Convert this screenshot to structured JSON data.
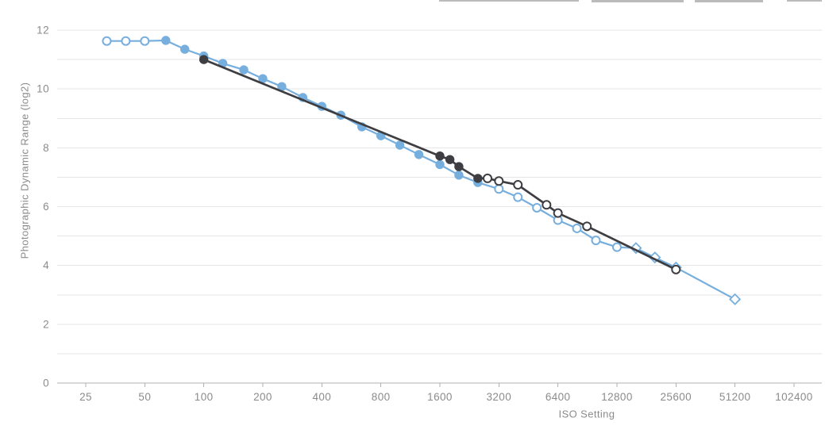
{
  "page": {
    "background": "#ffffff"
  },
  "chart_data": {
    "type": "line",
    "title": "",
    "xlabel": "ISO Setting",
    "ylabel": "Photographic Dynamic Range (log2)",
    "x_scale": "log2",
    "x_ticks": [
      25,
      50,
      100,
      200,
      400,
      800,
      1600,
      3200,
      6400,
      12800,
      25600,
      51200,
      102400
    ],
    "y_ticks_labeled": [
      0,
      2,
      4,
      6,
      8,
      10,
      12
    ],
    "y_gridline_step": 1,
    "ylim": [
      0,
      12
    ],
    "grid": "horizontal-only",
    "legend": "none",
    "colors": {
      "gridline": "#e6e6e6",
      "axis_line": "#b0b0b0",
      "tick_label": "#8b8b8b"
    },
    "series": [
      {
        "name": "blue-camera",
        "color": "#76aede",
        "line_width": 2.2,
        "points": [
          {
            "iso": 32,
            "pdr": 11.63,
            "marker": "open"
          },
          {
            "iso": 40,
            "pdr": 11.63,
            "marker": "open"
          },
          {
            "iso": 50,
            "pdr": 11.63,
            "marker": "open"
          },
          {
            "iso": 64,
            "pdr": 11.65,
            "marker": "filled"
          },
          {
            "iso": 80,
            "pdr": 11.35,
            "marker": "filled"
          },
          {
            "iso": 100,
            "pdr": 11.12,
            "marker": "filled"
          },
          {
            "iso": 125,
            "pdr": 10.87,
            "marker": "filled"
          },
          {
            "iso": 160,
            "pdr": 10.65,
            "marker": "filled"
          },
          {
            "iso": 200,
            "pdr": 10.35,
            "marker": "filled"
          },
          {
            "iso": 250,
            "pdr": 10.08,
            "marker": "filled"
          },
          {
            "iso": 320,
            "pdr": 9.71,
            "marker": "filled"
          },
          {
            "iso": 400,
            "pdr": 9.41,
            "marker": "filled"
          },
          {
            "iso": 500,
            "pdr": 9.11,
            "marker": "filled"
          },
          {
            "iso": 640,
            "pdr": 8.71,
            "marker": "filled"
          },
          {
            "iso": 800,
            "pdr": 8.41,
            "marker": "filled"
          },
          {
            "iso": 1000,
            "pdr": 8.09,
            "marker": "filled"
          },
          {
            "iso": 1250,
            "pdr": 7.77,
            "marker": "filled"
          },
          {
            "iso": 1600,
            "pdr": 7.43,
            "marker": "filled"
          },
          {
            "iso": 2000,
            "pdr": 7.07,
            "marker": "filled"
          },
          {
            "iso": 2500,
            "pdr": 6.82,
            "marker": "filled"
          },
          {
            "iso": 3200,
            "pdr": 6.6,
            "marker": "open"
          },
          {
            "iso": 4000,
            "pdr": 6.32,
            "marker": "open"
          },
          {
            "iso": 5000,
            "pdr": 5.96,
            "marker": "open"
          },
          {
            "iso": 6400,
            "pdr": 5.54,
            "marker": "open"
          },
          {
            "iso": 8000,
            "pdr": 5.26,
            "marker": "open"
          },
          {
            "iso": 10000,
            "pdr": 4.85,
            "marker": "open"
          },
          {
            "iso": 12800,
            "pdr": 4.62,
            "marker": "open"
          },
          {
            "iso": 16000,
            "pdr": 4.59,
            "marker": "diamond"
          },
          {
            "iso": 20000,
            "pdr": 4.27,
            "marker": "diamond"
          },
          {
            "iso": 25600,
            "pdr": 3.93,
            "marker": "diamond"
          },
          {
            "iso": 51200,
            "pdr": 2.85,
            "marker": "diamond"
          }
        ]
      },
      {
        "name": "black-camera",
        "color": "#3d3d42",
        "line_width": 2.7,
        "points": [
          {
            "iso": 100,
            "pdr": 11.0,
            "marker": "filled"
          },
          {
            "iso": 1600,
            "pdr": 7.72,
            "marker": "filled"
          },
          {
            "iso": 1800,
            "pdr": 7.6,
            "marker": "filled"
          },
          {
            "iso": 2000,
            "pdr": 7.36,
            "marker": "filled"
          },
          {
            "iso": 2500,
            "pdr": 6.96,
            "marker": "filled"
          },
          {
            "iso": 2800,
            "pdr": 6.96,
            "marker": "open"
          },
          {
            "iso": 3200,
            "pdr": 6.87,
            "marker": "open"
          },
          {
            "iso": 4000,
            "pdr": 6.74,
            "marker": "open"
          },
          {
            "iso": 5600,
            "pdr": 6.06,
            "marker": "open"
          },
          {
            "iso": 6400,
            "pdr": 5.78,
            "marker": "open"
          },
          {
            "iso": 9000,
            "pdr": 5.33,
            "marker": "open"
          },
          {
            "iso": 25600,
            "pdr": 3.86,
            "marker": "open"
          }
        ]
      }
    ]
  }
}
